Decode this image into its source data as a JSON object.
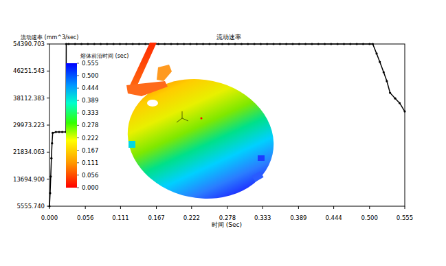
{
  "chart_data": {
    "type": "line",
    "title": "流动速率",
    "x_label": "时间 (Sec)",
    "y_label": "流动速率 (mm^3/sec)",
    "color": "#000000",
    "marker": "dot",
    "grid": false,
    "xlim": [
      0,
      0.555
    ],
    "ylim": [
      5555.74,
      54390.703
    ],
    "xticks": [
      {
        "value": 0,
        "label": "0.000"
      },
      {
        "value": 0.056,
        "label": "0.056"
      },
      {
        "value": 0.111,
        "label": "0.111"
      },
      {
        "value": 0.167,
        "label": "0.167"
      },
      {
        "value": 0.222,
        "label": "0.222"
      },
      {
        "value": 0.278,
        "label": "0.278"
      },
      {
        "value": 0.333,
        "label": "0.333"
      },
      {
        "value": 0.389,
        "label": "0.389"
      },
      {
        "value": 0.444,
        "label": "0.444"
      },
      {
        "value": 0.5,
        "label": "0.500"
      },
      {
        "value": 0.555,
        "label": "0.555"
      }
    ],
    "yticks": [
      {
        "value": 5555.74,
        "label": "5555.740"
      },
      {
        "value": 13694.9,
        "label": "13694.900"
      },
      {
        "value": 21834.063,
        "label": "21834.063"
      },
      {
        "value": 29973.223,
        "label": "29973.223"
      },
      {
        "value": 38112.383,
        "label": "38112.383"
      },
      {
        "value": 46251.543,
        "label": "46251.543"
      },
      {
        "value": 54390.703,
        "label": "54390.703"
      }
    ],
    "x": [
      0,
      0.001,
      0.002,
      0.003,
      0.004,
      0.005,
      0.01,
      0.015,
      0.02,
      0.0258,
      0.0262,
      0.03,
      0.04,
      0.05,
      0.06,
      0.07,
      0.08,
      0.09,
      0.1,
      0.11,
      0.12,
      0.13,
      0.14,
      0.15,
      0.16,
      0.17,
      0.18,
      0.19,
      0.2,
      0.21,
      0.22,
      0.23,
      0.24,
      0.25,
      0.26,
      0.27,
      0.28,
      0.29,
      0.3,
      0.31,
      0.32,
      0.33,
      0.34,
      0.35,
      0.36,
      0.37,
      0.38,
      0.39,
      0.4,
      0.41,
      0.42,
      0.43,
      0.44,
      0.45,
      0.46,
      0.47,
      0.48,
      0.49,
      0.5,
      0.505,
      0.511,
      0.516,
      0.522,
      0.527,
      0.532,
      0.54,
      0.547,
      0.555
    ],
    "values": [
      5555.74,
      9500,
      14500,
      20000,
      24500,
      27600,
      27900,
      27900,
      27900,
      27900,
      54390,
      54390,
      54390,
      54390,
      54390,
      54390,
      54390,
      54390,
      54390,
      54390,
      54390,
      54390,
      54390,
      54390,
      54390,
      54390,
      54390,
      54390,
      54390,
      54390,
      54390,
      54390,
      54390,
      54390,
      54390,
      54390,
      54390,
      54390,
      54390,
      54390,
      54390,
      54390,
      54390,
      54390,
      54390,
      54390,
      54390,
      54390,
      54390,
      54390,
      54390,
      54390,
      54390,
      54390,
      54390,
      54390,
      54390,
      54390,
      54390,
      54390,
      51500,
      49000,
      45900,
      43200,
      39700,
      38000,
      36600,
      34100
    ],
    "colorbar": {
      "label": "熔体前沿时间 (sec)",
      "range": [
        0,
        0.555
      ],
      "ticks": [
        {
          "value": 0,
          "label": "0.000"
        },
        {
          "value": 0.056,
          "label": "0.056"
        },
        {
          "value": 0.111,
          "label": "0.111"
        },
        {
          "value": 0.167,
          "label": "0.167"
        },
        {
          "value": 0.222,
          "label": "0.222"
        },
        {
          "value": 0.278,
          "label": "0.278"
        },
        {
          "value": 0.333,
          "label": "0.333"
        },
        {
          "value": 0.389,
          "label": "0.389"
        },
        {
          "value": 0.444,
          "label": "0.444"
        },
        {
          "value": 0.5,
          "label": "0.500"
        },
        {
          "value": 0.555,
          "label": "0.555"
        }
      ]
    }
  }
}
